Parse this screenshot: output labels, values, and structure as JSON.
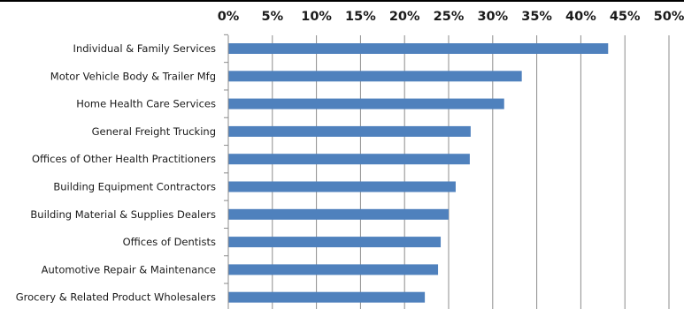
{
  "chart_data": {
    "type": "bar",
    "orientation": "horizontal",
    "title": "",
    "xlabel": "",
    "ylabel": "",
    "xlim": [
      0,
      50
    ],
    "x_ticks": [
      "0%",
      "5%",
      "10%",
      "15%",
      "20%",
      "25%",
      "30%",
      "35%",
      "40%",
      "45%",
      "50%"
    ],
    "x_axis_position": "top",
    "grid": "vertical",
    "legend": "none",
    "bar_color": "#4F81BD",
    "categories": [
      "Individual & Family Services",
      "Motor Vehicle Body & Trailer Mfg",
      "Home Health Care Services",
      "General Freight Trucking",
      "Offices of Other Health Practitioners",
      "Building Equipment Contractors",
      "Building Material & Supplies Dealers",
      "Offices of Dentists",
      "Automotive Repair & Maintenance",
      "Grocery & Related Product Wholesalers"
    ],
    "values": [
      43.1,
      33.3,
      31.3,
      27.5,
      27.4,
      25.8,
      25.0,
      24.1,
      23.8,
      22.3
    ]
  }
}
